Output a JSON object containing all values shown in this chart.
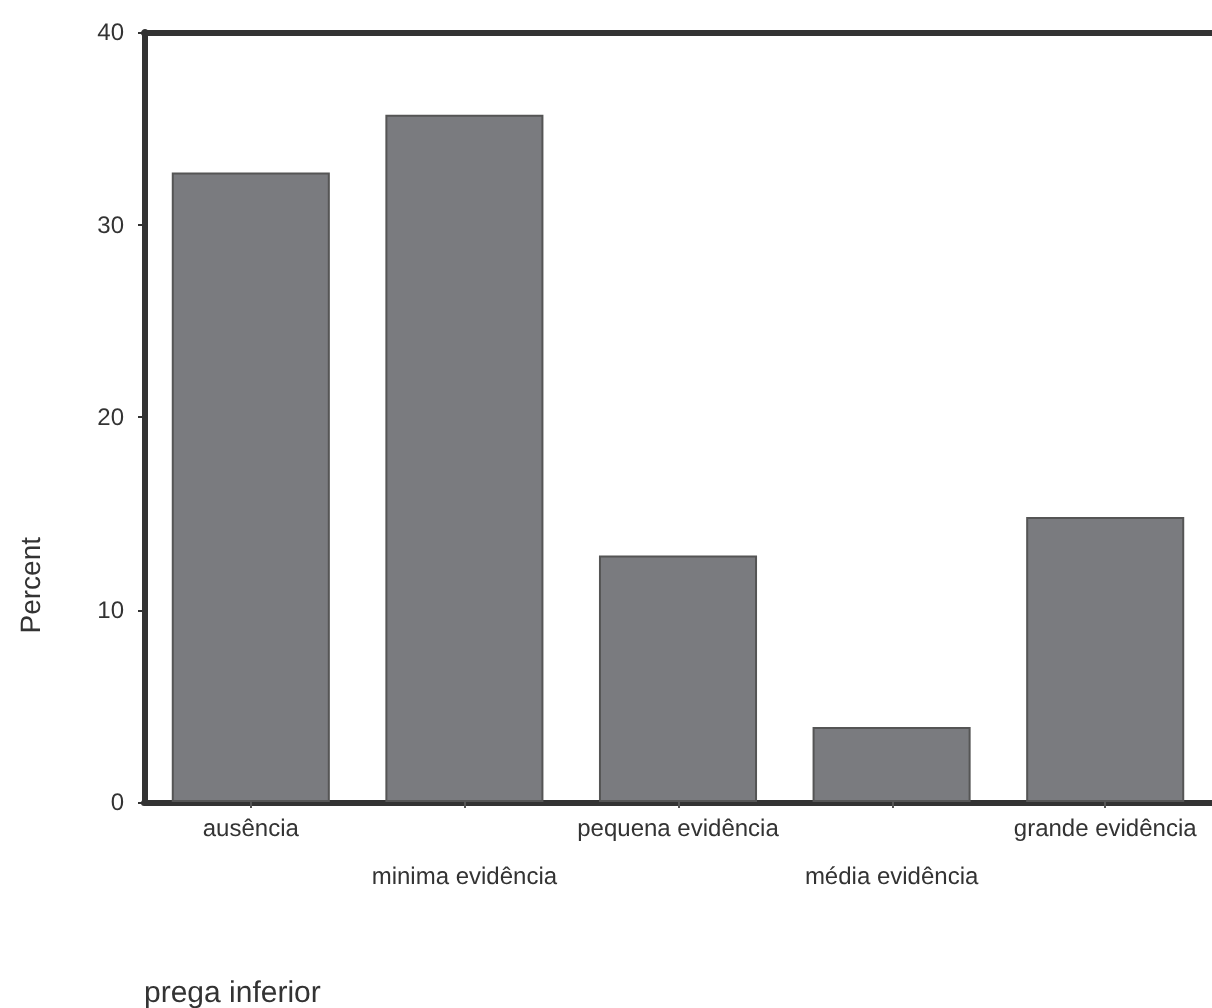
{
  "chart_data": {
    "type": "bar",
    "xlabel": "prega inferior",
    "ylabel": "Percent",
    "categories": [
      "ausência",
      "minima evidência",
      "pequena evidência",
      "média evidência",
      "grande evidência"
    ],
    "values": [
      32.7,
      35.7,
      12.8,
      3.9,
      14.8
    ],
    "color": "#7a7b7f",
    "ylim": [
      0,
      40
    ],
    "yticks": [
      0,
      10,
      20,
      30,
      40
    ],
    "grid": false
  }
}
